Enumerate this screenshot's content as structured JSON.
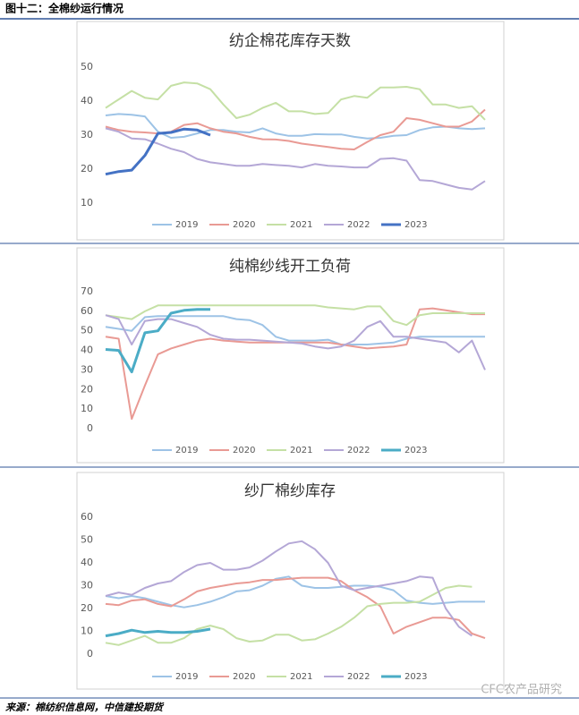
{
  "header": "图十二：全棉纱运行情况",
  "source": "来源：棉纺织信息网，中信建投期货",
  "watermark": "CFC农产品研究",
  "chart_data": [
    {
      "type": "line",
      "title": "纺企棉花库存天数",
      "ylim": [
        10,
        50
      ],
      "yticks": [
        10,
        20,
        30,
        40,
        50
      ],
      "series": [
        {
          "name": "2019",
          "color": "#9dc3e6",
          "values": [
            35.8,
            36.2,
            36,
            35.5,
            31,
            29.2,
            29.5,
            30.5,
            31.5,
            31.5,
            31,
            30.8,
            32,
            30.5,
            29.8,
            29.8,
            30.3,
            30.2,
            30.2,
            29.5,
            29,
            29.2,
            29.8,
            30,
            31.5,
            32.3,
            32.5,
            32,
            31.8,
            32
          ]
        },
        {
          "name": "2020",
          "color": "#e99a94",
          "values": [
            32.5,
            31.5,
            31,
            30.8,
            30.5,
            31,
            33,
            33.5,
            32,
            31,
            30.5,
            29.5,
            28.8,
            28.7,
            28.3,
            27.5,
            27,
            26.5,
            26,
            25.8,
            28,
            30,
            31,
            35,
            34.5,
            33.5,
            32.5,
            32.5,
            34,
            37.5
          ]
        },
        {
          "name": "2021",
          "color": "#c5e0a5",
          "values": [
            38,
            40.5,
            43,
            41,
            40.5,
            44.5,
            45.5,
            45.2,
            43.5,
            39,
            35,
            36,
            38,
            39.5,
            37,
            37,
            36.2,
            36.5,
            40.5,
            41.5,
            41,
            44,
            44,
            44.2,
            43.5,
            39,
            39,
            38,
            38.5,
            34.5
          ]
        },
        {
          "name": "2022",
          "color": "#b4a7d6",
          "values": [
            32,
            31,
            29,
            28.8,
            27.5,
            26,
            25,
            23,
            22,
            21.5,
            21,
            21,
            21.5,
            21.2,
            21,
            20.5,
            21.5,
            21,
            20.8,
            20.5,
            20.5,
            23,
            23.2,
            22.5,
            16.8,
            16.5,
            15.5,
            14.5,
            14,
            16.5
          ]
        },
        {
          "name": "2023",
          "color": "#4472c4",
          "values": [
            18.5,
            19.3,
            19.7,
            24,
            30.5,
            30.8,
            31.8,
            31.5,
            30,
            null,
            null,
            null,
            null,
            null,
            null,
            null,
            null,
            null,
            null,
            null,
            null,
            null,
            null,
            null,
            null,
            null,
            null,
            null,
            null,
            null
          ]
        }
      ]
    },
    {
      "type": "line",
      "title": "纯棉纱线开工负荷",
      "ylim": [
        0,
        70
      ],
      "yticks": [
        0,
        10,
        20,
        30,
        40,
        50,
        60,
        70
      ],
      "series": [
        {
          "name": "2019",
          "color": "#9dc3e6",
          "values": [
            52,
            51,
            50,
            57,
            57.5,
            57.5,
            57.5,
            57.5,
            57.5,
            57.5,
            56,
            55.5,
            53,
            47,
            45,
            45,
            45,
            45.5,
            43,
            43,
            43,
            43.5,
            44,
            46,
            47,
            47,
            47,
            47,
            47,
            47
          ]
        },
        {
          "name": "2020",
          "color": "#e99a94",
          "values": [
            47,
            46,
            5,
            22,
            38,
            41,
            43,
            45,
            46,
            45,
            44.5,
            44,
            44,
            44,
            44,
            44,
            44,
            44,
            43,
            42,
            41,
            41.5,
            42,
            43,
            61,
            61.5,
            60.5,
            59.5,
            58.5,
            58.5
          ]
        },
        {
          "name": "2021",
          "color": "#c5e0a5",
          "values": [
            58,
            57,
            56,
            60,
            63,
            63,
            63,
            63,
            63,
            63,
            63,
            63,
            63,
            63,
            63,
            63,
            63,
            62,
            61.5,
            61,
            62.5,
            62.5,
            55,
            53,
            58,
            59,
            59,
            59,
            59,
            59
          ]
        },
        {
          "name": "2022",
          "color": "#b4a7d6",
          "values": [
            58,
            56,
            43,
            55,
            56,
            56,
            54,
            52,
            48,
            46,
            45.5,
            45.5,
            45,
            44.5,
            44,
            43.5,
            42,
            41,
            42,
            45,
            52,
            55,
            47,
            47,
            46,
            45,
            44,
            39,
            45,
            30
          ]
        },
        {
          "name": "2023",
          "color": "#4bacc6",
          "values": [
            40.5,
            40,
            29,
            49,
            50,
            59,
            60.5,
            61,
            61,
            null,
            null,
            null,
            null,
            null,
            null,
            null,
            null,
            null,
            null,
            null,
            null,
            null,
            null,
            null,
            null,
            null,
            null,
            null,
            null,
            null
          ]
        }
      ]
    },
    {
      "type": "line",
      "title": "纱厂棉纱库存",
      "ylim": [
        0,
        60
      ],
      "yticks": [
        0,
        10,
        20,
        30,
        40,
        50,
        60
      ],
      "series": [
        {
          "name": "2019",
          "color": "#9dc3e6",
          "values": [
            25.5,
            24.5,
            25.5,
            24.5,
            23,
            21.5,
            20.5,
            21.5,
            23,
            25,
            27.5,
            28,
            30,
            33,
            34,
            30,
            29,
            29,
            29.5,
            30,
            30,
            29.5,
            28,
            23.5,
            22.5,
            22,
            22.5,
            23,
            23,
            23
          ]
        },
        {
          "name": "2020",
          "color": "#e99a94",
          "values": [
            22,
            21.5,
            23.5,
            24,
            22,
            21,
            24,
            27.5,
            29,
            30,
            31,
            31.5,
            32.5,
            32.5,
            33,
            33.5,
            33.5,
            33.5,
            32,
            28,
            25,
            21,
            9,
            12,
            14,
            16,
            16,
            15,
            9,
            7
          ]
        },
        {
          "name": "2021",
          "color": "#c5e0a5",
          "values": [
            5,
            4,
            6,
            8,
            5,
            5,
            7,
            11,
            12.5,
            11,
            7,
            5.5,
            6,
            8.5,
            8.5,
            6,
            6.5,
            9,
            12,
            16,
            21,
            22,
            22.5,
            22.5,
            23,
            26,
            29,
            30,
            29.5,
            null
          ]
        },
        {
          "name": "2022",
          "color": "#b4a7d6",
          "values": [
            25.5,
            27,
            26,
            29,
            31,
            32,
            36,
            39,
            40,
            37,
            37,
            38,
            41,
            45,
            48.5,
            49.5,
            46,
            40,
            30,
            28,
            29,
            30,
            31,
            32,
            34,
            33.5,
            20,
            12,
            8,
            null
          ]
        },
        {
          "name": "2023",
          "color": "#4bacc6",
          "values": [
            8,
            9,
            10.5,
            9.5,
            10,
            9.5,
            9.5,
            10,
            11,
            null,
            null,
            null,
            null,
            null,
            null,
            null,
            null,
            null,
            null,
            null,
            null,
            null,
            null,
            null,
            null,
            null,
            null,
            null,
            null,
            null
          ]
        }
      ]
    }
  ]
}
